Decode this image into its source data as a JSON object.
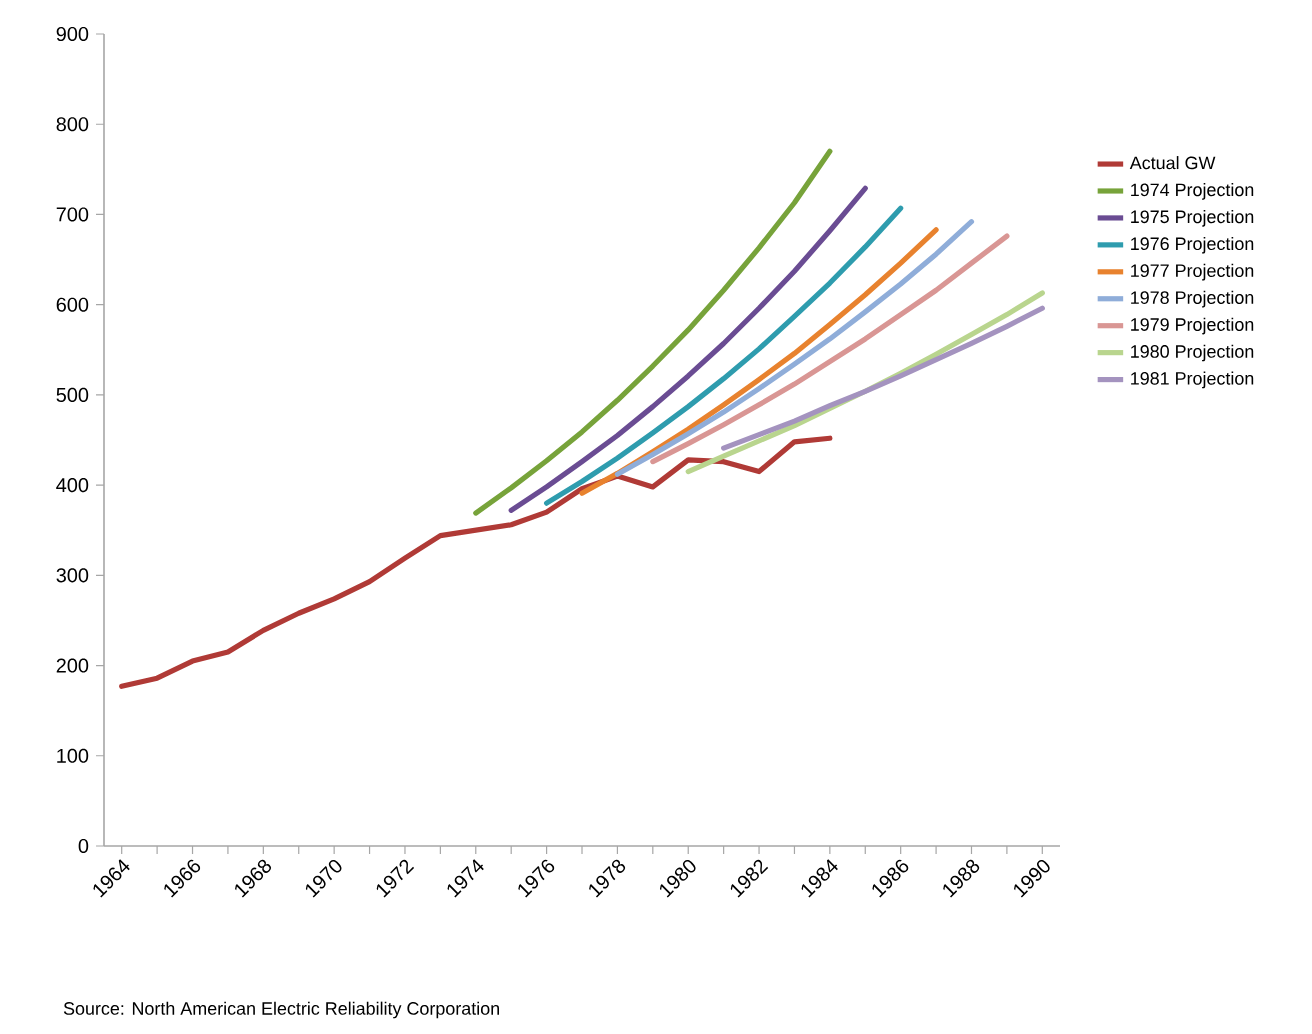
{
  "chart_data": {
    "type": "line",
    "xlim": [
      1963.5,
      1990.5
    ],
    "xticks": [
      1964,
      {
        "value": 1965,
        "label": null
      },
      1966,
      {
        "value": 1967,
        "label": null
      },
      1968,
      {
        "value": 1969,
        "label": null
      },
      1970,
      {
        "value": 1971,
        "label": null
      },
      1972,
      {
        "value": 1973,
        "label": null
      },
      1974,
      {
        "value": 1975,
        "label": null
      },
      1976,
      {
        "value": 1977,
        "label": null
      },
      1978,
      {
        "value": 1979,
        "label": null
      },
      1980,
      {
        "value": 1981,
        "label": null
      },
      1982,
      {
        "value": 1983,
        "label": null
      },
      1984,
      {
        "value": 1985,
        "label": null
      },
      1986,
      {
        "value": 1987,
        "label": null
      },
      1988,
      {
        "value": 1989,
        "label": null
      },
      1990
    ],
    "ylim": [
      0,
      900
    ],
    "yticks": [
      0,
      100,
      200,
      300,
      400,
      500,
      600,
      700,
      800,
      900
    ],
    "grid": false,
    "legend": "right",
    "marker": "none",
    "line_style": "solid",
    "series": [
      {
        "name": "Actual GW",
        "color": "#b03a36",
        "x": [
          1964,
          1965,
          1966,
          1967,
          1968,
          1969,
          1970,
          1971,
          1972,
          1973,
          1974,
          1975,
          1976,
          1977,
          1978,
          1979,
          1980,
          1981,
          1982,
          1983,
          1984
        ],
        "values": [
          177,
          186,
          205,
          215,
          239,
          258,
          274,
          293,
          319,
          344,
          350,
          356,
          370,
          396,
          410,
          398,
          428,
          426,
          415,
          448,
          452
        ]
      },
      {
        "name": "1974 Projection",
        "color": "#77a33a",
        "x": [
          1974,
          1975,
          1976,
          1977,
          1978,
          1979,
          1980,
          1981,
          1982,
          1983,
          1984
        ],
        "values": [
          369,
          397,
          427,
          459,
          494,
          532,
          572,
          616,
          663,
          713,
          770
        ]
      },
      {
        "name": "1975 Projection",
        "color": "#6a4c93",
        "x": [
          1975,
          1976,
          1977,
          1978,
          1979,
          1980,
          1981,
          1982,
          1983,
          1984,
          1985
        ],
        "values": [
          372,
          398,
          426,
          455,
          487,
          521,
          557,
          596,
          637,
          682,
          729
        ]
      },
      {
        "name": "1976 Projection",
        "color": "#2e9cae",
        "x": [
          1976,
          1977,
          1978,
          1979,
          1980,
          1981,
          1982,
          1983,
          1984,
          1985,
          1986
        ],
        "values": [
          380,
          404,
          430,
          458,
          487,
          518,
          551,
          587,
          624,
          664,
          707
        ]
      },
      {
        "name": "1977 Projection",
        "color": "#e8822e",
        "x": [
          1977,
          1978,
          1979,
          1980,
          1981,
          1982,
          1983,
          1984,
          1985,
          1986,
          1987
        ],
        "values": [
          391,
          413,
          437,
          462,
          489,
          517,
          546,
          578,
          611,
          646,
          683
        ]
      },
      {
        "name": "1978 Projection",
        "color": "#8fadd9",
        "x": [
          1978,
          1979,
          1980,
          1981,
          1982,
          1983,
          1984,
          1985,
          1986,
          1987,
          1988
        ],
        "values": [
          412,
          434,
          457,
          481,
          507,
          534,
          562,
          592,
          623,
          656,
          692
        ]
      },
      {
        "name": "1979 Projection",
        "color": "#d99694",
        "x": [
          1979,
          1980,
          1981,
          1982,
          1983,
          1984,
          1985,
          1986,
          1987,
          1988,
          1989
        ],
        "values": [
          426,
          446,
          467,
          489,
          512,
          537,
          562,
          589,
          616,
          646,
          676
        ]
      },
      {
        "name": "1980 Projection",
        "color": "#b9d58e",
        "x": [
          1980,
          1981,
          1982,
          1983,
          1984,
          1985,
          1986,
          1987,
          1988,
          1989,
          1990
        ],
        "values": [
          415,
          432,
          449,
          466,
          485,
          504,
          524,
          545,
          567,
          589,
          613
        ]
      },
      {
        "name": "1981 Projection",
        "color": "#a493bf",
        "x": [
          1981,
          1982,
          1983,
          1984,
          1985,
          1986,
          1987,
          1988,
          1989,
          1990
        ],
        "values": [
          441,
          456,
          471,
          488,
          504,
          521,
          539,
          557,
          576,
          596
        ]
      }
    ],
    "annotations": [
      "Source: North American Electric Reliability Corporation"
    ]
  }
}
